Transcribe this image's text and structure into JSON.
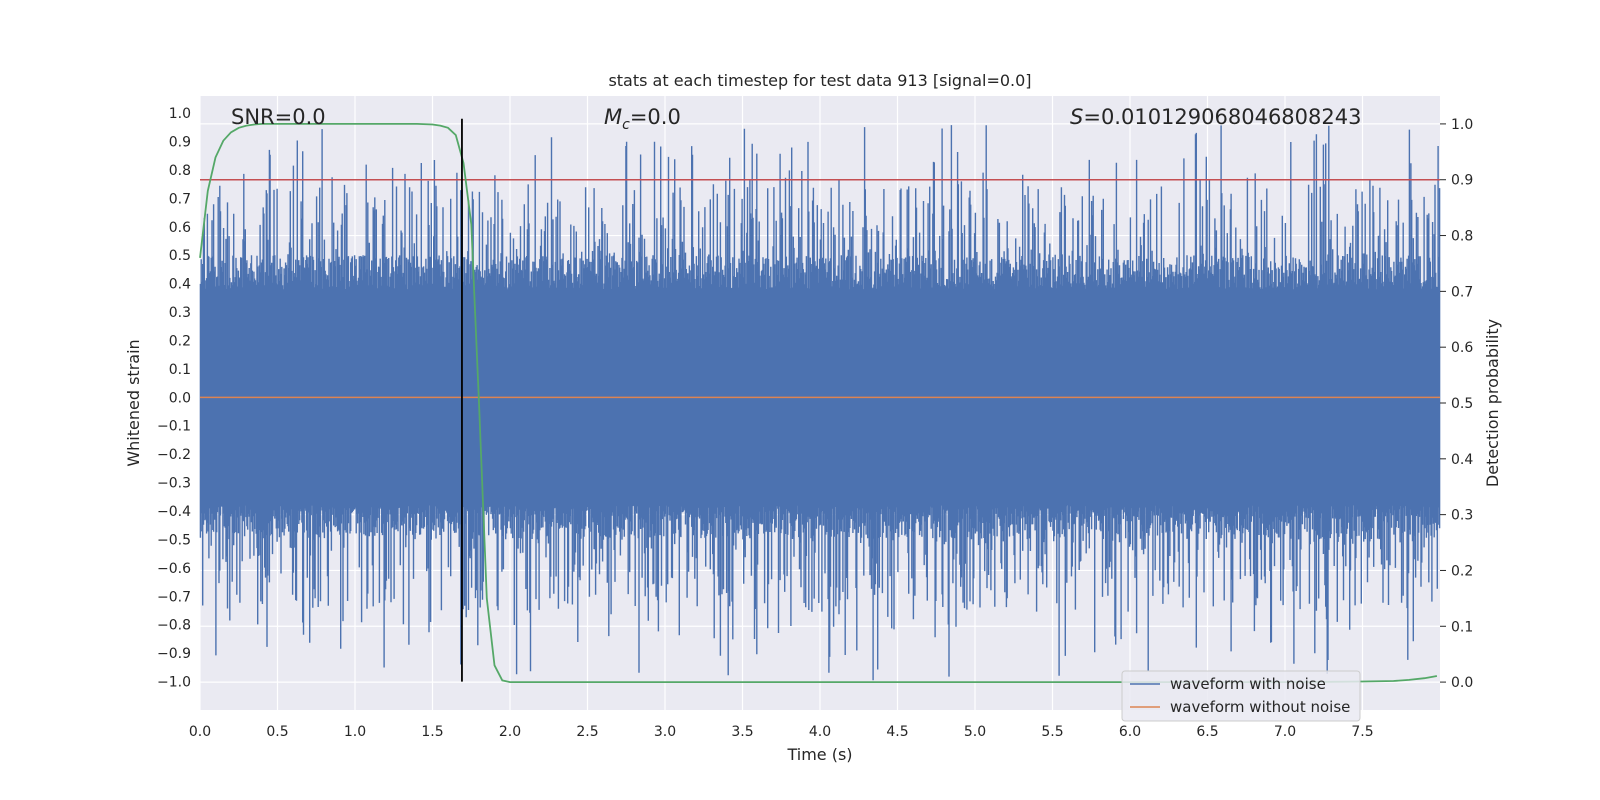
{
  "chart_data": {
    "type": "line",
    "title": "stats at each timestep for test data 913 [signal=0.0]",
    "xlabel": "Time (s)",
    "ylabel": "Whitened strain",
    "y2label": "Detection probability",
    "xlim": [
      0.0,
      8.0
    ],
    "ylim": [
      -1.1,
      1.06
    ],
    "y2lim": [
      -0.05,
      1.05
    ],
    "grid": true,
    "x_ticks": [
      "0.0",
      "0.5",
      "1.0",
      "1.5",
      "2.0",
      "2.5",
      "3.0",
      "3.5",
      "4.0",
      "4.5",
      "5.0",
      "5.5",
      "6.0",
      "6.5",
      "7.0",
      "7.5"
    ],
    "y_ticks": [
      "1.0",
      "0.9",
      "0.8",
      "0.7",
      "0.6",
      "0.5",
      "0.4",
      "0.3",
      "0.2",
      "0.1",
      "0.0",
      "-0.1",
      "-0.2",
      "-0.3",
      "-0.4",
      "-0.5",
      "-0.6",
      "-0.7",
      "-0.8",
      "-0.9",
      "-1.0"
    ],
    "y2_ticks": [
      "1.0",
      "0.9",
      "0.8",
      "0.7",
      "0.6",
      "0.5",
      "0.4",
      "0.3",
      "0.2",
      "0.1",
      "0.0"
    ],
    "annotations": {
      "snr": "SNR=0.0",
      "mc_symbol": "M",
      "mc_sub": "c",
      "mc_value": "=0.0",
      "s_symbol": "S",
      "s_value": "=0.010129068046808243"
    },
    "series": [
      {
        "name": "waveform with noise",
        "color": "#4c72b0",
        "kind": "noise",
        "sample_count": 1600,
        "base_amplitude_min": 0.38,
        "base_amplitude_max": 0.5,
        "peak_max": 0.96,
        "trough_min": -1.0
      },
      {
        "name": "waveform without noise",
        "color": "#dd8452",
        "x": [
          0.0,
          8.0
        ],
        "y": [
          0.0,
          0.0
        ]
      },
      {
        "name": "detection probability",
        "color": "#55a868",
        "axis": "right",
        "x": [
          0.0,
          0.05,
          0.1,
          0.15,
          0.2,
          0.25,
          0.3,
          0.35,
          0.4,
          0.5,
          0.6,
          0.8,
          1.0,
          1.2,
          1.4,
          1.5,
          1.55,
          1.6,
          1.65,
          1.7,
          1.75,
          1.8,
          1.85,
          1.9,
          1.95,
          2.0,
          3.0,
          4.0,
          5.0,
          6.0,
          7.0,
          7.3,
          7.5,
          7.7,
          7.8,
          7.9,
          7.98
        ],
        "y": [
          0.76,
          0.88,
          0.94,
          0.97,
          0.985,
          0.993,
          0.997,
          0.999,
          1.0,
          1.0,
          1.0,
          1.0,
          1.0,
          1.0,
          1.0,
          0.999,
          0.997,
          0.993,
          0.98,
          0.93,
          0.82,
          0.5,
          0.15,
          0.03,
          0.003,
          0.0,
          0.0,
          0.0,
          0.0,
          0.0,
          0.0,
          0.0005,
          0.001,
          0.002,
          0.004,
          0.007,
          0.011
        ]
      },
      {
        "name": "detection threshold",
        "color": "#c44e52",
        "axis": "right",
        "x": [
          0.0,
          8.0
        ],
        "y": [
          0.9,
          0.9
        ]
      },
      {
        "name": "detection time marker",
        "color": "#000000",
        "x": [
          1.69,
          1.69
        ],
        "y": [
          -1.0,
          0.98
        ]
      }
    ],
    "legend": {
      "placement": "lower-right",
      "entries": [
        "waveform with noise",
        "waveform without noise"
      ]
    }
  }
}
